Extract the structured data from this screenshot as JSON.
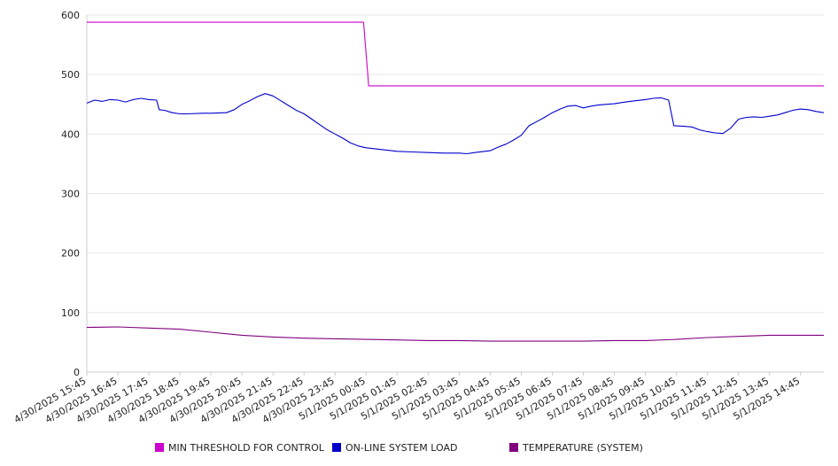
{
  "chart_data": {
    "type": "line",
    "title": "",
    "xlabel": "",
    "ylabel": "",
    "ylim": [
      0,
      600
    ],
    "y_ticks": [
      0,
      100,
      200,
      300,
      400,
      500,
      600
    ],
    "grid": "horizontal",
    "legend_position": "bottom",
    "x_tick_labels": [
      "4/30/2025 15:45",
      "4/30/2025 16:45",
      "4/30/2025 17:45",
      "4/30/2025 18:45",
      "4/30/2025 19:45",
      "4/30/2025 20:45",
      "4/30/2025 21:45",
      "4/30/2025 22:45",
      "4/30/2025 23:45",
      "5/1/2025 00:45",
      "5/1/2025 01:45",
      "5/1/2025 02:45",
      "5/1/2025 03:45",
      "5/1/2025 04:45",
      "5/1/2025 05:45",
      "5/1/2025 06:45",
      "5/1/2025 07:45",
      "5/1/2025 08:45",
      "5/1/2025 09:45",
      "5/1/2025 10:45",
      "5/1/2025 11:45",
      "5/1/2025 12:45",
      "5/1/2025 13:45",
      "5/1/2025 14:45"
    ],
    "series": [
      {
        "name": "MIN THRESHOLD FOR CONTROL",
        "color": "#cc00cc",
        "points": [
          [
            "4/30/2025 15:45",
            588
          ],
          [
            "5/1/2025 00:40",
            588
          ],
          [
            "5/1/2025 00:50",
            481
          ],
          [
            "5/1/2025 15:30",
            481
          ]
        ]
      },
      {
        "name": "ON-LINE SYSTEM LOAD",
        "color": "#0000cc",
        "points": [
          [
            "4/30/2025 15:45",
            452
          ],
          [
            "4/30/2025 16:00",
            457
          ],
          [
            "4/30/2025 16:15",
            455
          ],
          [
            "4/30/2025 16:30",
            458
          ],
          [
            "4/30/2025 16:45",
            457
          ],
          [
            "4/30/2025 17:00",
            454
          ],
          [
            "4/30/2025 17:15",
            458
          ],
          [
            "4/30/2025 17:30",
            460
          ],
          [
            "4/30/2025 17:45",
            458
          ],
          [
            "4/30/2025 18:00",
            457
          ],
          [
            "4/30/2025 18:05",
            441
          ],
          [
            "4/30/2025 18:15",
            440
          ],
          [
            "4/30/2025 18:30",
            436
          ],
          [
            "4/30/2025 18:45",
            434
          ],
          [
            "4/30/2025 19:00",
            434
          ],
          [
            "4/30/2025 19:30",
            435
          ],
          [
            "4/30/2025 19:45",
            435
          ],
          [
            "4/30/2025 20:15",
            436
          ],
          [
            "4/30/2025 20:30",
            441
          ],
          [
            "4/30/2025 20:45",
            450
          ],
          [
            "4/30/2025 21:00",
            456
          ],
          [
            "4/30/2025 21:15",
            463
          ],
          [
            "4/30/2025 21:30",
            468
          ],
          [
            "4/30/2025 21:45",
            464
          ],
          [
            "4/30/2025 22:00",
            456
          ],
          [
            "4/30/2025 22:15",
            448
          ],
          [
            "4/30/2025 22:30",
            440
          ],
          [
            "4/30/2025 22:45",
            434
          ],
          [
            "4/30/2025 23:00",
            425
          ],
          [
            "4/30/2025 23:15",
            416
          ],
          [
            "4/30/2025 23:30",
            407
          ],
          [
            "4/30/2025 23:45",
            400
          ],
          [
            "5/1/2025 00:00",
            393
          ],
          [
            "5/1/2025 00:15",
            385
          ],
          [
            "5/1/2025 00:30",
            380
          ],
          [
            "5/1/2025 00:45",
            377
          ],
          [
            "5/1/2025 01:15",
            374
          ],
          [
            "5/1/2025 01:45",
            371
          ],
          [
            "5/1/2025 02:15",
            370
          ],
          [
            "5/1/2025 02:45",
            369
          ],
          [
            "5/1/2025 03:15",
            368
          ],
          [
            "5/1/2025 03:45",
            368
          ],
          [
            "5/1/2025 04:00",
            367
          ],
          [
            "5/1/2025 04:15",
            369
          ],
          [
            "5/1/2025 04:45",
            372
          ],
          [
            "5/1/2025 05:00",
            378
          ],
          [
            "5/1/2025 05:15",
            383
          ],
          [
            "5/1/2025 05:30",
            390
          ],
          [
            "5/1/2025 05:45",
            398
          ],
          [
            "5/1/2025 06:00",
            414
          ],
          [
            "5/1/2025 06:15",
            421
          ],
          [
            "5/1/2025 06:30",
            428
          ],
          [
            "5/1/2025 06:45",
            436
          ],
          [
            "5/1/2025 07:00",
            442
          ],
          [
            "5/1/2025 07:15",
            447
          ],
          [
            "5/1/2025 07:30",
            448
          ],
          [
            "5/1/2025 07:45",
            444
          ],
          [
            "5/1/2025 08:00",
            447
          ],
          [
            "5/1/2025 08:15",
            449
          ],
          [
            "5/1/2025 08:45",
            451
          ],
          [
            "5/1/2025 09:00",
            453
          ],
          [
            "5/1/2025 09:15",
            455
          ],
          [
            "5/1/2025 09:45",
            458
          ],
          [
            "5/1/2025 10:00",
            460
          ],
          [
            "5/1/2025 10:15",
            461
          ],
          [
            "5/1/2025 10:30",
            457
          ],
          [
            "5/1/2025 10:40",
            414
          ],
          [
            "5/1/2025 11:00",
            413
          ],
          [
            "5/1/2025 11:15",
            412
          ],
          [
            "5/1/2025 11:30",
            407
          ],
          [
            "5/1/2025 11:45",
            404
          ],
          [
            "5/1/2025 12:00",
            402
          ],
          [
            "5/1/2025 12:15",
            401
          ],
          [
            "5/1/2025 12:30",
            410
          ],
          [
            "5/1/2025 12:45",
            425
          ],
          [
            "5/1/2025 13:00",
            428
          ],
          [
            "5/1/2025 13:15",
            429
          ],
          [
            "5/1/2025 13:30",
            428
          ],
          [
            "5/1/2025 13:45",
            430
          ],
          [
            "5/1/2025 14:00",
            432
          ],
          [
            "5/1/2025 14:15",
            436
          ],
          [
            "5/1/2025 14:30",
            440
          ],
          [
            "5/1/2025 14:45",
            442
          ],
          [
            "5/1/2025 15:00",
            441
          ],
          [
            "5/1/2025 15:15",
            438
          ],
          [
            "5/1/2025 15:30",
            436
          ]
        ]
      },
      {
        "name": "TEMPERATURE (SYSTEM)",
        "color": "#800080",
        "points": [
          [
            "4/30/2025 15:45",
            75
          ],
          [
            "4/30/2025 16:45",
            76
          ],
          [
            "4/30/2025 17:45",
            74
          ],
          [
            "4/30/2025 18:45",
            72
          ],
          [
            "4/30/2025 19:45",
            67
          ],
          [
            "4/30/2025 20:45",
            62
          ],
          [
            "4/30/2025 21:45",
            59
          ],
          [
            "4/30/2025 22:45",
            57
          ],
          [
            "4/30/2025 23:45",
            56
          ],
          [
            "5/1/2025 00:45",
            55
          ],
          [
            "5/1/2025 01:45",
            54
          ],
          [
            "5/1/2025 02:45",
            53
          ],
          [
            "5/1/2025 03:45",
            53
          ],
          [
            "5/1/2025 04:45",
            52
          ],
          [
            "5/1/2025 05:45",
            52
          ],
          [
            "5/1/2025 06:45",
            52
          ],
          [
            "5/1/2025 07:45",
            52
          ],
          [
            "5/1/2025 08:45",
            53
          ],
          [
            "5/1/2025 09:45",
            53
          ],
          [
            "5/1/2025 10:45",
            55
          ],
          [
            "5/1/2025 11:45",
            58
          ],
          [
            "5/1/2025 12:45",
            60
          ],
          [
            "5/1/2025 13:45",
            62
          ],
          [
            "5/1/2025 14:45",
            62
          ],
          [
            "5/1/2025 15:30",
            62
          ]
        ]
      }
    ]
  }
}
